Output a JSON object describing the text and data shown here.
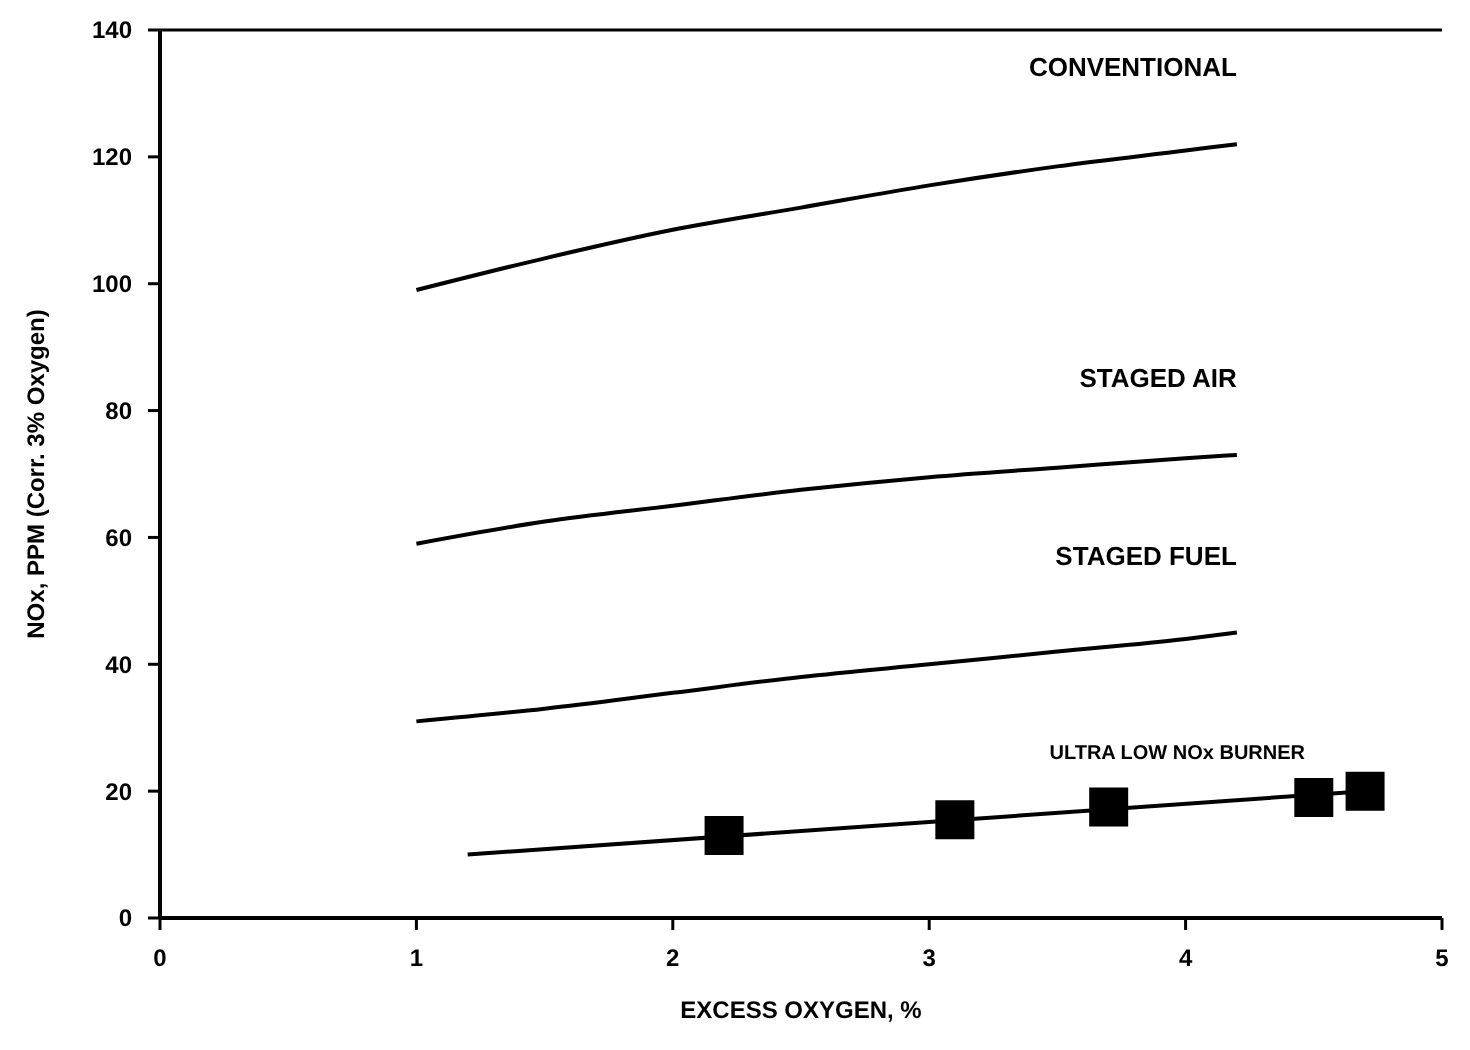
{
  "chart_data": {
    "type": "line",
    "xlabel": "EXCESS OXYGEN, %",
    "ylabel": "NOx, PPM (Corr. 3% Oxygen)",
    "xlim": [
      0,
      5
    ],
    "xticks": [
      0,
      1,
      2,
      3,
      4,
      5
    ],
    "ylim": [
      0,
      140
    ],
    "yticks": [
      0,
      20,
      40,
      60,
      80,
      100,
      120,
      140
    ],
    "grid": false,
    "marker": "none",
    "line_style": "solid",
    "series": [
      {
        "name": "CONVENTIONAL",
        "color": "#000000",
        "x": [
          1,
          1.5,
          2,
          2.5,
          3,
          3.5,
          4,
          4.2
        ],
        "values": [
          99,
          104,
          108.5,
          112,
          115.5,
          118.5,
          121,
          122
        ]
      },
      {
        "name": "STAGED AIR",
        "color": "#000000",
        "x": [
          1,
          1.5,
          2,
          2.5,
          3,
          3.5,
          4,
          4.2
        ],
        "values": [
          59,
          62.5,
          65,
          67.5,
          69.5,
          71,
          72.5,
          73
        ]
      },
      {
        "name": "STAGED FUEL",
        "color": "#000000",
        "x": [
          1,
          1.5,
          2,
          2.5,
          3,
          3.5,
          4,
          4.2
        ],
        "values": [
          31,
          33,
          35.5,
          38,
          40,
          42,
          44,
          45
        ]
      },
      {
        "name": "ULTRA LOW NOx BURNER",
        "color": "#000000",
        "x": [
          1.2,
          4.7
        ],
        "values": [
          10,
          20
        ]
      },
      {
        "type": "scatter",
        "marker": "square",
        "color": "#000000",
        "x": [
          2.2,
          3.1,
          3.7,
          4.5,
          4.7
        ],
        "values": [
          13,
          15.5,
          17.5,
          19,
          20
        ]
      }
    ]
  }
}
